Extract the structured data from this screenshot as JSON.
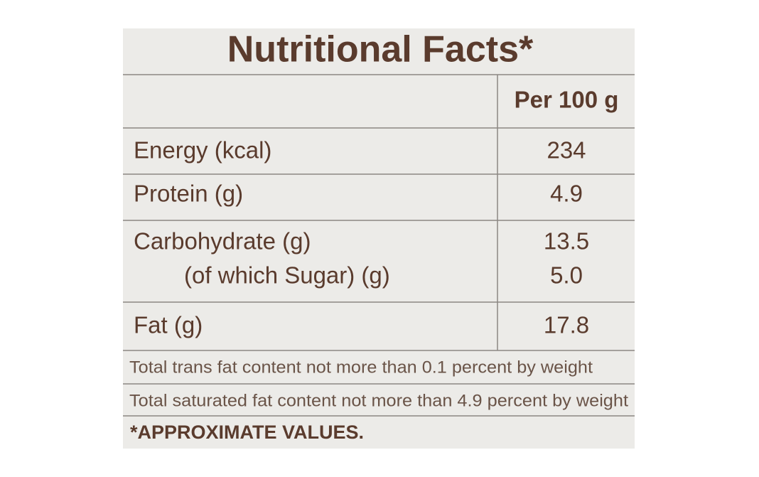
{
  "title": "Nutritional Facts*",
  "table": {
    "header": "Per 100 g",
    "rows": [
      {
        "label": "Energy (kcal)",
        "value": "234"
      },
      {
        "label": "Protein (g)",
        "value": "4.9"
      },
      {
        "label": "Carbohydrate (g)",
        "value": "13.5"
      },
      {
        "label": "(of which Sugar) (g)",
        "value": "5.0"
      },
      {
        "label": "Fat (g)",
        "value": "17.8"
      }
    ]
  },
  "notes": [
    "Total trans fat content not more than 0.1 percent by weight",
    "Total saturated fat content not more than 4.9 percent by weight"
  ],
  "footer": "*APPROXIMATE VALUES."
}
